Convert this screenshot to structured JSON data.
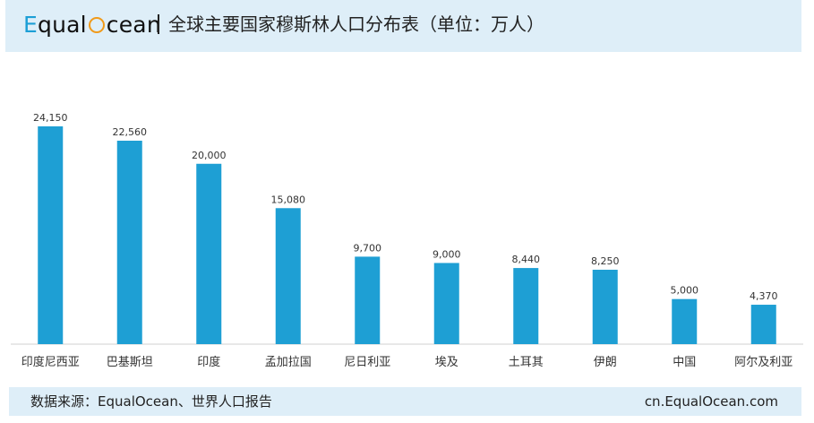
{
  "header": {
    "brand_prefix": "E",
    "brand_mid": "qual",
    "brand_suffix": "cean",
    "title": "全球主要国家穆斯林人口分布表（单位：万人）"
  },
  "footer": {
    "source": "数据来源：EqualOcean、世界人口报告",
    "site": "cn.EqualOcean.com"
  },
  "colors": {
    "bar": "#1e9fd4",
    "header_bg": "#deeef8",
    "brand_blue": "#1c9fd6",
    "brand_orange": "#f09a1a"
  },
  "chart_data": {
    "type": "bar",
    "title": "全球主要国家穆斯林人口分布表（单位：万人）",
    "xlabel": "",
    "ylabel": "",
    "categories": [
      "印度尼西亚",
      "巴基斯坦",
      "印度",
      "孟加拉国",
      "尼日利亚",
      "埃及",
      "土耳其",
      "伊朗",
      "中国",
      "阿尔及利亚"
    ],
    "values": [
      24150,
      22560,
      20000,
      15080,
      9700,
      9000,
      8440,
      8250,
      5000,
      4370
    ],
    "value_labels": [
      "24,150",
      "22,560",
      "20,000",
      "15,080",
      "9,700",
      "9,000",
      "8,440",
      "8,250",
      "5,000",
      "4,370"
    ],
    "ylim": [
      0,
      24150
    ],
    "grid": false,
    "legend": "none"
  }
}
